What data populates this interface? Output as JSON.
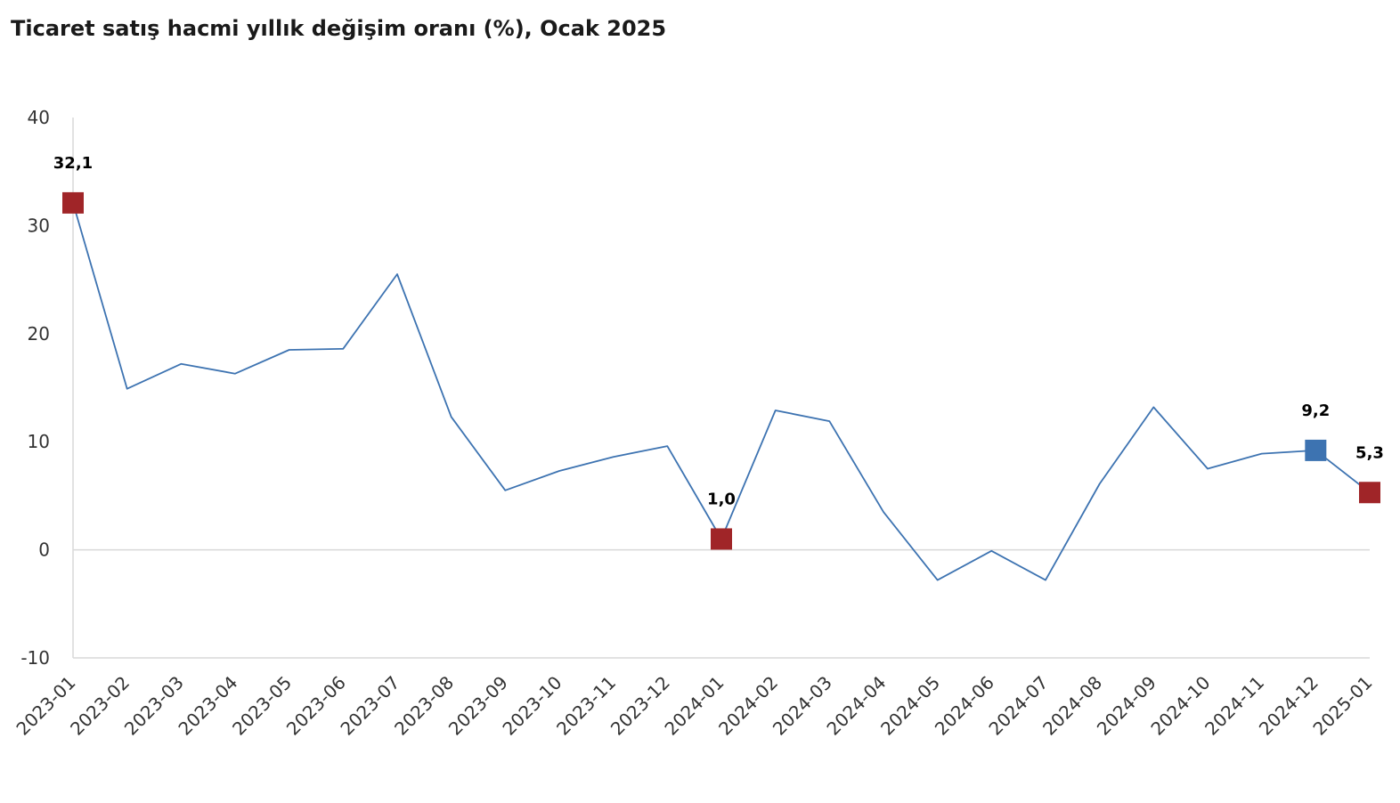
{
  "title": "Ticaret satış hacmi yıllık değişim oranı (%), Ocak 2025",
  "chart_data": {
    "type": "line",
    "title": "Ticaret satış hacmi yıllık değişim oranı (%), Ocak 2025",
    "xlabel": "",
    "ylabel": "",
    "categories": [
      "2023-01",
      "2023-02",
      "2023-03",
      "2023-04",
      "2023-05",
      "2023-06",
      "2023-07",
      "2023-08",
      "2023-09",
      "2023-10",
      "2023-11",
      "2023-12",
      "2024-01",
      "2024-02",
      "2024-03",
      "2024-04",
      "2024-05",
      "2024-06",
      "2024-07",
      "2024-08",
      "2024-09",
      "2024-10",
      "2024-11",
      "2024-12",
      "2025-01"
    ],
    "series": [
      {
        "values": [
          32.1,
          14.9,
          17.2,
          16.3,
          18.5,
          18.6,
          25.5,
          12.3,
          5.5,
          7.3,
          8.6,
          9.6,
          1.0,
          12.9,
          11.9,
          3.5,
          -2.8,
          -0.1,
          -2.8,
          6.1,
          13.2,
          7.5,
          8.9,
          9.2,
          5.3
        ],
        "color": "#3d73b1"
      }
    ],
    "ylim": [
      -10,
      40
    ],
    "yticks": [
      -10,
      0,
      10,
      20,
      30,
      40
    ],
    "grid": false,
    "zero_line": true,
    "legend": "none",
    "highlighted_points": [
      {
        "category": "2023-01",
        "label": "32,1",
        "color": "#a02528"
      },
      {
        "category": "2024-01",
        "label": "1,0",
        "color": "#a02528"
      },
      {
        "category": "2024-12",
        "label": "9,2",
        "color": "#3d73b1"
      },
      {
        "category": "2025-01",
        "label": "5,3",
        "color": "#a02528"
      }
    ]
  }
}
